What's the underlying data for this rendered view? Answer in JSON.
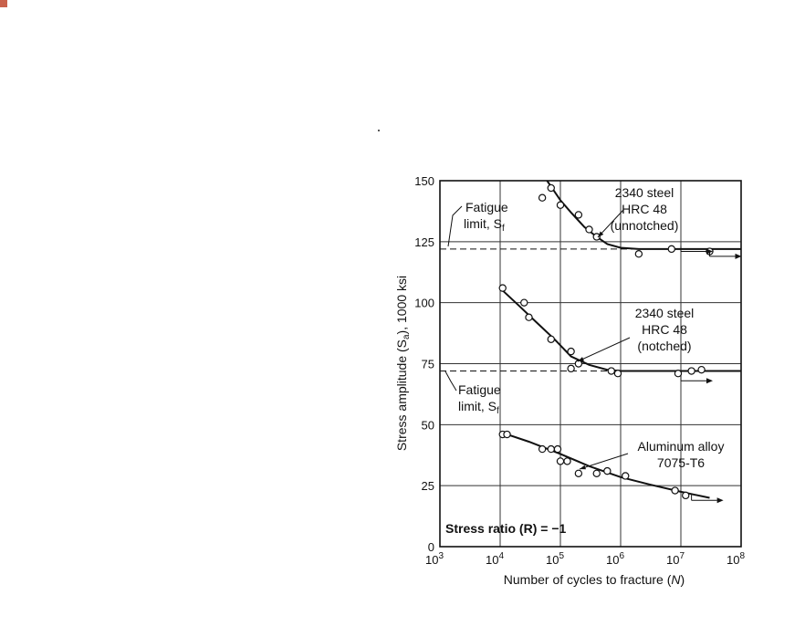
{
  "chart_data": {
    "type": "scatter",
    "xscale": "log",
    "xlim": [
      1000,
      100000000
    ],
    "ylim": [
      0,
      150
    ],
    "xlabel_prefix": "Number of cycles to fracture (",
    "xlabel_var": "N",
    "xlabel_suffix": ")",
    "ylabel": "Stress amplitude (S",
    "ylabel_sub": "a",
    "ylabel_rest": "), 1000 ksi",
    "y_ticks": [
      0,
      25,
      50,
      75,
      100,
      125,
      150
    ],
    "x_ticks": [
      {
        "value": 1000,
        "base": "10",
        "exp": "3"
      },
      {
        "value": 10000,
        "base": "10",
        "exp": "4"
      },
      {
        "value": 100000,
        "base": "10",
        "exp": "5"
      },
      {
        "value": 1000000,
        "base": "10",
        "exp": "6"
      },
      {
        "value": 10000000,
        "base": "10",
        "exp": "7"
      },
      {
        "value": 100000000,
        "base": "10",
        "exp": "8"
      }
    ],
    "grid": true,
    "fatigue_limits": [
      122,
      72
    ],
    "series": [
      {
        "name_lines": [
          "2340 steel",
          "HRC 48",
          "(unnotched)"
        ],
        "points": [
          [
            50000,
            143
          ],
          [
            70000,
            147
          ],
          [
            100000,
            140
          ],
          [
            200000,
            136
          ],
          [
            300000,
            130
          ],
          [
            400000,
            127
          ],
          [
            2000000,
            120
          ],
          [
            7000000,
            122
          ],
          [
            30000000,
            121
          ]
        ],
        "runouts": [
          [
            10000000,
            121
          ],
          [
            30000000,
            119
          ]
        ],
        "curve": [
          [
            60000,
            150
          ],
          [
            100000,
            142
          ],
          [
            150000,
            137
          ],
          [
            250000,
            131
          ],
          [
            400000,
            127
          ],
          [
            600000,
            124
          ],
          [
            1000000,
            122.5
          ],
          [
            2000000,
            122
          ],
          [
            100000000,
            122
          ]
        ]
      },
      {
        "name_lines": [
          "2340 steel",
          "HRC 48",
          "(notched)"
        ],
        "points": [
          [
            11000,
            106
          ],
          [
            25000,
            100
          ],
          [
            30000,
            94
          ],
          [
            70000,
            85
          ],
          [
            150000,
            80
          ],
          [
            200000,
            75
          ],
          [
            150000,
            73
          ],
          [
            700000,
            72
          ],
          [
            900000,
            71
          ],
          [
            9000000,
            71
          ],
          [
            15000000,
            72
          ],
          [
            22000000,
            72.5
          ]
        ],
        "runouts": [
          [
            10000000,
            68
          ]
        ],
        "curve": [
          [
            11000,
            105
          ],
          [
            20000,
            99
          ],
          [
            40000,
            92
          ],
          [
            80000,
            85
          ],
          [
            150000,
            78
          ],
          [
            300000,
            74.5
          ],
          [
            600000,
            72.5
          ],
          [
            1000000,
            72
          ],
          [
            100000000,
            72
          ]
        ]
      },
      {
        "name_lines": [
          "Aluminum alloy",
          "7075-T6"
        ],
        "points": [
          [
            11000,
            46
          ],
          [
            13000,
            46
          ],
          [
            50000,
            40
          ],
          [
            70000,
            40
          ],
          [
            90000,
            40
          ],
          [
            100000,
            35
          ],
          [
            130000,
            35
          ],
          [
            200000,
            30
          ],
          [
            400000,
            30
          ],
          [
            600000,
            31
          ],
          [
            1200000,
            29
          ],
          [
            8000000,
            23
          ],
          [
            12000000,
            21
          ]
        ],
        "runouts": [
          [
            15000000,
            19
          ]
        ],
        "curve": [
          [
            10000,
            47
          ],
          [
            30000,
            43
          ],
          [
            100000,
            38
          ],
          [
            300000,
            33
          ],
          [
            1000000,
            28.5
          ],
          [
            3000000,
            25.5
          ],
          [
            10000000,
            22.5
          ],
          [
            30000000,
            20
          ]
        ]
      }
    ],
    "annotations": {
      "fatigue_limit_top": [
        "Fatigue",
        "limit, S"
      ],
      "fatigue_limit_bottom": [
        "Fatigue",
        "limit, S"
      ],
      "fatigue_sub": "f",
      "stress_ratio": "Stress ratio (R) = −1"
    },
    "colors": {
      "corner_accent": "#c9614c",
      "ink": "#111111"
    }
  }
}
